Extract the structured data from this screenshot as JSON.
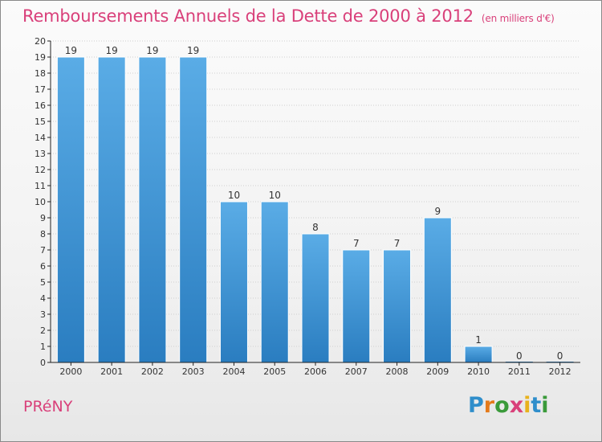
{
  "title": "Remboursements Annuels de la Dette de 2000 à 2012",
  "unit": "(en milliers d'€)",
  "commune": "PRéNY",
  "brand_letters": [
    "P",
    "r",
    "o",
    "x",
    "i",
    "t",
    "i"
  ],
  "colors": {
    "title": "#d9407a",
    "bar_top": "#5aace6",
    "bar_bottom": "#2a7dc0",
    "grid": "#cfcfcf",
    "axis": "#222222",
    "text": "#333333"
  },
  "chart_data": {
    "type": "bar",
    "title": "Remboursements Annuels de la Dette de 2000 à 2012",
    "subtitle": "(en milliers d'€)",
    "xlabel": "",
    "ylabel": "",
    "categories": [
      "2000",
      "2001",
      "2002",
      "2003",
      "2004",
      "2005",
      "2006",
      "2007",
      "2008",
      "2009",
      "2010",
      "2011",
      "2012"
    ],
    "values": [
      19,
      19,
      19,
      19,
      10,
      10,
      8,
      7,
      7,
      9,
      1,
      0,
      0
    ],
    "ylim": [
      0,
      20
    ],
    "yticks": [
      0,
      1,
      2,
      3,
      4,
      5,
      6,
      7,
      8,
      9,
      10,
      11,
      12,
      13,
      14,
      15,
      16,
      17,
      18,
      19,
      20
    ],
    "grid": true,
    "legend": "none"
  }
}
